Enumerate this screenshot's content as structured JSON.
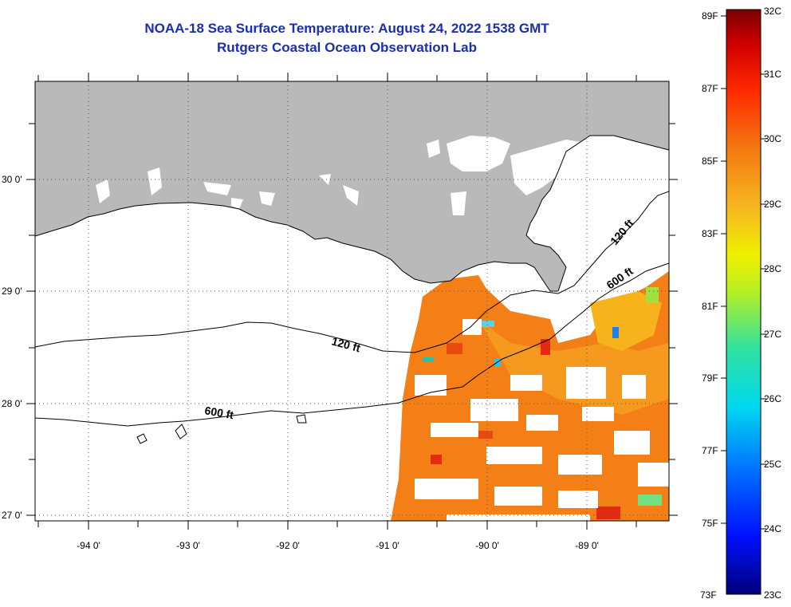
{
  "header": {
    "title": "NOAA-18 Sea Surface Temperature:  August 24, 2022 1538 GMT",
    "subtitle": "Rutgers Coastal Ocean Observation Lab"
  },
  "map": {
    "lon_labels": [
      "-94 0'",
      "-93 0'",
      "-92 0'",
      "-91 0'",
      "-90 0'",
      "-89 0'"
    ],
    "lat_labels": [
      "30 0'",
      "29 0'",
      "28 0'",
      "27 0'"
    ],
    "contours": [
      {
        "label": "120 ft"
      },
      {
        "label": "600 ft"
      },
      {
        "label": "120 ft"
      },
      {
        "label": "600 ft"
      }
    ]
  },
  "colorbar": {
    "f_labels": [
      "89F",
      "87F",
      "85F",
      "83F",
      "81F",
      "79F",
      "77F",
      "75F",
      "73F"
    ],
    "c_labels": [
      "32C",
      "31C",
      "30C",
      "29C",
      "28C",
      "27C",
      "26C",
      "25C",
      "24C",
      "23C"
    ],
    "colors": {
      "land": "#b9b9b9",
      "cloud": "#ffffff",
      "warm": "#f47f16",
      "hot": "#e42a10",
      "cool": "#f7b31c"
    }
  }
}
